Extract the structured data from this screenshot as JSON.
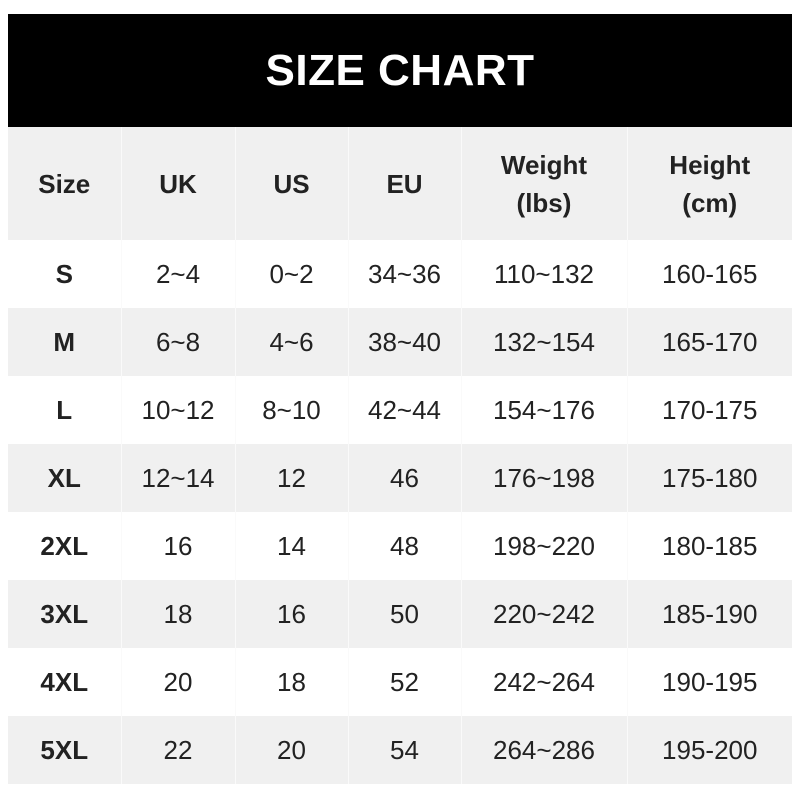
{
  "title": "SIZE CHART",
  "columns": [
    "Size",
    "UK",
    "US",
    "EU",
    "Weight\n(lbs)",
    "Height\n(cm)"
  ],
  "rows": [
    [
      "S",
      "2~4",
      "0~2",
      "34~36",
      "110~132",
      "160-165"
    ],
    [
      "M",
      "6~8",
      "4~6",
      "38~40",
      "132~154",
      "165-170"
    ],
    [
      "L",
      "10~12",
      "8~10",
      "42~44",
      "154~176",
      "170-175"
    ],
    [
      "XL",
      "12~14",
      "12",
      "46",
      "176~198",
      "175-180"
    ],
    [
      "2XL",
      "16",
      "14",
      "48",
      "198~220",
      "180-185"
    ],
    [
      "3XL",
      "18",
      "16",
      "50",
      "220~242",
      "185-190"
    ],
    [
      "4XL",
      "20",
      "18",
      "52",
      "242~264",
      "190-195"
    ],
    [
      "5XL",
      "22",
      "20",
      "54",
      "264~286",
      "195-200"
    ]
  ],
  "colors": {
    "header_bg": "#000000",
    "stripe": "#f0f0f0"
  }
}
